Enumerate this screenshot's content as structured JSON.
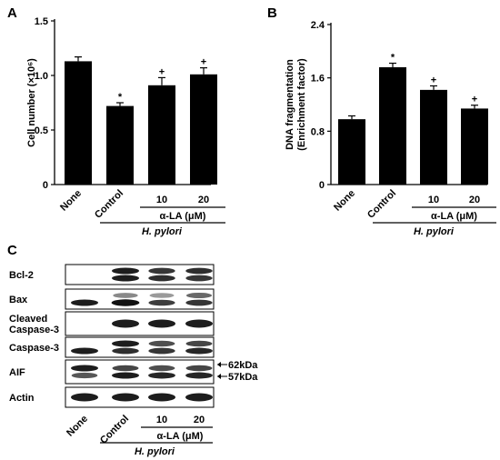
{
  "panel_a": {
    "letter": "A",
    "group_label": "α-LA (μM)",
    "hp_label": "H. pylori"
  },
  "panel_b": {
    "letter": "B",
    "group_label": "α-LA (μM)",
    "hp_label": "H. pylori"
  },
  "panel_c": {
    "letter": "C",
    "rows": [
      {
        "label_lines": [
          "Bcl-2"
        ]
      },
      {
        "label_lines": [
          "Bax"
        ]
      },
      {
        "label_lines": [
          "Cleaved",
          "Caspase-3"
        ]
      },
      {
        "label_lines": [
          "Caspase-3"
        ]
      },
      {
        "label_lines": [
          "AIF"
        ]
      },
      {
        "label_lines": [
          "Actin"
        ]
      }
    ],
    "markers": [
      "62kDa",
      "57kDa"
    ],
    "lane_labels": [
      "None",
      "Control",
      "10",
      "20"
    ],
    "group_label": "α-LA (μM)",
    "hp_label": "H. pylori"
  },
  "chart_data": [
    {
      "type": "bar",
      "ylabel": "Cell number (×10⁶)",
      "categories": [
        "None",
        "Control",
        "10",
        "20"
      ],
      "values": [
        1.13,
        0.72,
        0.91,
        1.01
      ],
      "errors": [
        0.04,
        0.03,
        0.07,
        0.06
      ],
      "markers": [
        "",
        "*",
        "+",
        "+"
      ],
      "ylim": [
        0,
        1.5
      ],
      "yticks": [
        "0",
        "0.5",
        "1.0",
        "1.5"
      ],
      "bar_color": "#000000"
    },
    {
      "type": "bar",
      "ylabel": [
        "DNA fragmentation",
        "(Enrichment factor)"
      ],
      "categories": [
        "None",
        "Control",
        "10",
        "20"
      ],
      "values": [
        0.98,
        1.76,
        1.42,
        1.14
      ],
      "errors": [
        0.05,
        0.06,
        0.06,
        0.05
      ],
      "markers": [
        "",
        "*",
        "+",
        "+"
      ],
      "ylim": [
        0,
        2.4
      ],
      "yticks": [
        "0",
        "0.8",
        "1.6",
        "2.4"
      ],
      "bar_color": "#000000"
    }
  ]
}
